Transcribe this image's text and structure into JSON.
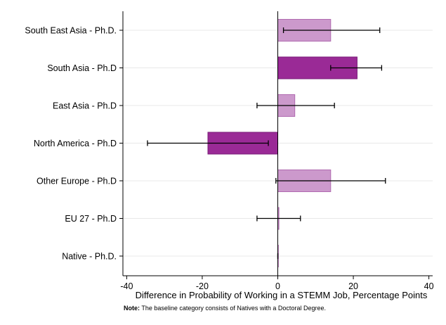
{
  "chart_data": {
    "type": "bar",
    "orientation": "horizontal",
    "categories": [
      "South East Asia - Ph.D.",
      "South Asia - Ph.D",
      "East Asia - Ph.D",
      "North America - Ph.D",
      "Other Europe - Ph.D",
      "EU 27 - Ph.D",
      "Native - Ph.D."
    ],
    "values": [
      14,
      21,
      4.5,
      -18.5,
      14,
      0.3,
      0
    ],
    "ci_low": [
      1.5,
      14,
      -5.5,
      -34.5,
      -0.5,
      -5.5,
      0
    ],
    "ci_high": [
      27,
      27.5,
      15,
      -2.5,
      28.5,
      6,
      0
    ],
    "significant": [
      false,
      true,
      false,
      true,
      false,
      false,
      false
    ],
    "colors": {
      "significant": "#9a2a96",
      "not_significant": "#cc99cc",
      "edge_light": "#b06ab0",
      "edge_dark": "#7a1f78",
      "errorbar": "#000000",
      "grid": "#e8e8e8",
      "zero_line": "#000000"
    },
    "xlabel": "Difference in Probability of Working in a STEMM Job, Percentage Points",
    "ylabel": "",
    "xlim": [
      -41,
      41
    ],
    "xticks": [
      -40,
      -20,
      0,
      20,
      40
    ],
    "xtick_labels": [
      "-40",
      "-20",
      "0",
      "20",
      "40"
    ],
    "grid": true
  },
  "note": {
    "label": "Note:",
    "text": " The baseline category consists of Natives with a Doctoral Degree."
  }
}
